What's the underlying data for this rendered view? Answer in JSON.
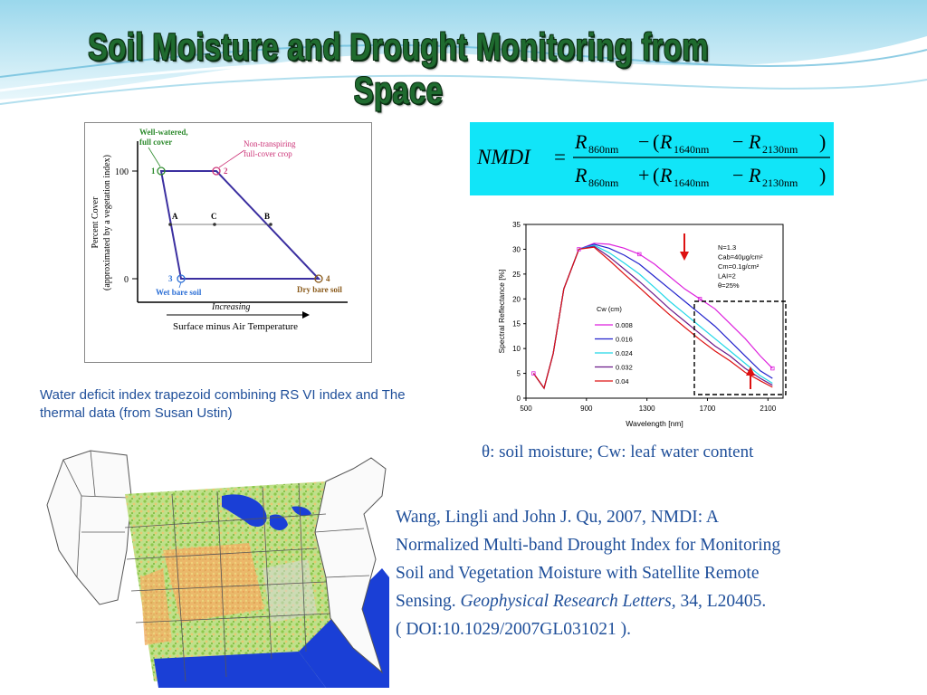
{
  "slide": {
    "title": "Soil Moisture and Drought Monitoring from Space"
  },
  "trapezoid": {
    "y_label_line1": "Percent Cover",
    "y_label_line2": "(approximated by a vegetation index)",
    "x_label": "Surface minus Air Temperature",
    "increasing": "Increasing",
    "tick_100": "100",
    "tick_0": "0",
    "well_watered_1": "Well-watered,",
    "well_watered_2": "full cover",
    "non_transpiring_1": "Non-transpiring",
    "non_transpiring_2": "full-cover crop",
    "wet_bare_soil": "Wet bare soil",
    "dry_bare_soil": "Dry bare soil",
    "p1": "1",
    "p2": "2",
    "p3": "3",
    "p4": "4",
    "pA": "A",
    "pB": "B",
    "pC": "C",
    "colors": {
      "green": "#2e8b2e",
      "pink": "#cc3377",
      "blue": "#2c6fd6",
      "brown": "#8a5a1a",
      "line": "#3b2fa0"
    }
  },
  "caption": "Water deficit index trapezoid combining RS VI  index and  The thermal data (from Susan Ustin)",
  "formula": {
    "lhs": "NMDI",
    "num_a": "R",
    "num_a_sub": "860nm",
    "num_b": "R",
    "num_b_sub": "1640nm",
    "num_c": "R",
    "num_c_sub": "2130nm",
    "num_op": "−",
    "den_op": "+",
    "inner_op": "−",
    "bg_color": "#11e5f8"
  },
  "chart_data": {
    "type": "line",
    "xlabel": "Wavelength [nm]",
    "ylabel": "Spectral Reflectance [%]",
    "xlim": [
      500,
      2200
    ],
    "ylim": [
      0,
      35
    ],
    "x_ticks": [
      "500",
      "900",
      "1300",
      "1700",
      "2100"
    ],
    "y_ticks": [
      "0",
      "5",
      "10",
      "15",
      "20",
      "25",
      "30",
      "35"
    ],
    "legend_title": "Cw (cm)",
    "legend_placement": "center-left",
    "params": [
      "N=1.3",
      "Cab=40μg/cm²",
      "Cm=0.1g/cm²",
      "LAI=2",
      "θ=25%"
    ],
    "x": [
      550,
      620,
      680,
      750,
      850,
      950,
      1050,
      1150,
      1250,
      1350,
      1450,
      1550,
      1650,
      1750,
      1850,
      1950,
      2050,
      2130
    ],
    "series": [
      {
        "name": "0.008",
        "color": "#dd22dd",
        "values": [
          5,
          2,
          9,
          22,
          30,
          31.2,
          31,
          30.2,
          29,
          27,
          24.5,
          22,
          20,
          18,
          15,
          12,
          8.5,
          6
        ]
      },
      {
        "name": "0.016",
        "color": "#2222cc",
        "values": [
          5,
          2,
          9,
          22,
          30,
          31,
          30.2,
          28.8,
          27,
          24.5,
          22,
          19.5,
          17,
          14.5,
          11.5,
          8.5,
          5.5,
          4
        ]
      },
      {
        "name": "0.024",
        "color": "#22d8e8",
        "values": [
          5,
          2,
          9,
          22,
          30,
          30.8,
          29.3,
          27.2,
          25,
          22.3,
          19.5,
          17,
          14.5,
          12,
          9.5,
          7,
          4.5,
          3
        ]
      },
      {
        "name": "0.032",
        "color": "#6a1a8a",
        "values": [
          5,
          2,
          9,
          22,
          30,
          30.6,
          28.5,
          26,
          23.5,
          20.8,
          18,
          15.5,
          13,
          10.5,
          8.5,
          6,
          4,
          2.6
        ]
      },
      {
        "name": "0.04",
        "color": "#dd1111",
        "values": [
          5,
          2,
          9,
          22,
          30,
          30.4,
          27.8,
          25,
          22.3,
          19.5,
          16.8,
          14.3,
          11.8,
          9.5,
          7.5,
          5.2,
          3.5,
          2.2
        ]
      }
    ]
  },
  "theta_note": "θ: soil moisture; Cw: leaf water content",
  "citation": {
    "line1": "Wang, Lingli and John J. Qu, 2007, NMDI: A",
    "line2": "Normalized Multi-band Drought Index for Monitoring",
    "line3": "Soil and Vegetation Moisture with Satellite Remote",
    "line4_plain": "Sensing. ",
    "journal": "Geophysical Research Letters,",
    "line4_tail": " 34, L20405.",
    "line5": "( DOI:10.1029/2007GL031021 )."
  }
}
